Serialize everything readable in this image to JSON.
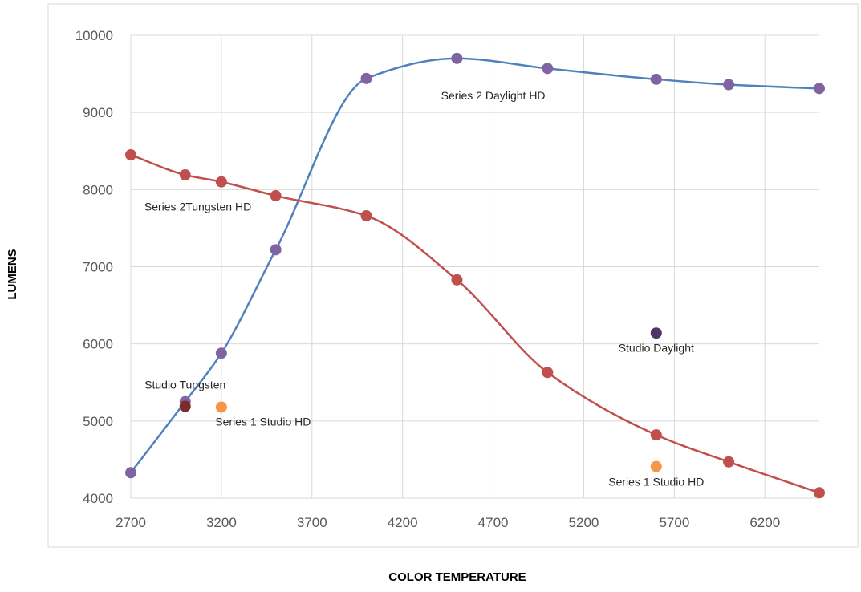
{
  "chart_data": {
    "type": "scatter",
    "title": "",
    "xlabel": "COLOR TEMPERATURE",
    "ylabel": "LUMENS",
    "xlim": [
      2700,
      6500
    ],
    "ylim": [
      4000,
      10000
    ],
    "x_ticks": [
      2700,
      3200,
      3700,
      4200,
      4700,
      5200,
      5700,
      6200
    ],
    "y_ticks": [
      4000,
      5000,
      6000,
      7000,
      8000,
      9000,
      10000
    ],
    "grid": true,
    "legend": "none",
    "series": [
      {
        "kind": "smooth-line",
        "color": "#4f81bd",
        "marker_color": "#8064a2",
        "points": [
          [
            2700,
            4330
          ],
          [
            3000,
            5250
          ],
          [
            3200,
            5880
          ],
          [
            3500,
            7220
          ],
          [
            4000,
            9440
          ],
          [
            4500,
            9700
          ],
          [
            5000,
            9570
          ],
          [
            5600,
            9430
          ],
          [
            6000,
            9360
          ],
          [
            6500,
            9310
          ]
        ]
      },
      {
        "kind": "smooth-line",
        "color": "#c0504d",
        "marker_color": "#c0504d",
        "points": [
          [
            2700,
            8450
          ],
          [
            3000,
            8190
          ],
          [
            3200,
            8100
          ],
          [
            3500,
            7920
          ],
          [
            4000,
            7660
          ],
          [
            4500,
            6830
          ],
          [
            5000,
            5630
          ],
          [
            5600,
            4820
          ],
          [
            6000,
            4470
          ],
          [
            6500,
            4070
          ]
        ]
      },
      {
        "kind": "point",
        "color": "#7b2b2b",
        "points": [
          [
            3000,
            5190
          ]
        ]
      },
      {
        "kind": "point",
        "color": "#f79646",
        "points": [
          [
            3200,
            5180
          ],
          [
            5600,
            4410
          ]
        ]
      },
      {
        "kind": "point",
        "color": "#4b3664",
        "points": [
          [
            5600,
            6140
          ]
        ]
      }
    ],
    "annotations": [
      {
        "text": "Series 2 Daylight HD",
        "x": 4700,
        "y": 9170
      },
      {
        "text": "Series 2Tungsten HD",
        "x": 3070,
        "y": 7730
      },
      {
        "text": "Studio Daylight",
        "x": 5600,
        "y": 5900
      },
      {
        "text": "Studio Tungsten",
        "x": 3000,
        "y": 5420
      },
      {
        "text": "Series 1 Studio HD",
        "x": 3430,
        "y": 4940
      },
      {
        "text": "Series 1 Studio HD",
        "x": 5600,
        "y": 4160
      }
    ]
  }
}
